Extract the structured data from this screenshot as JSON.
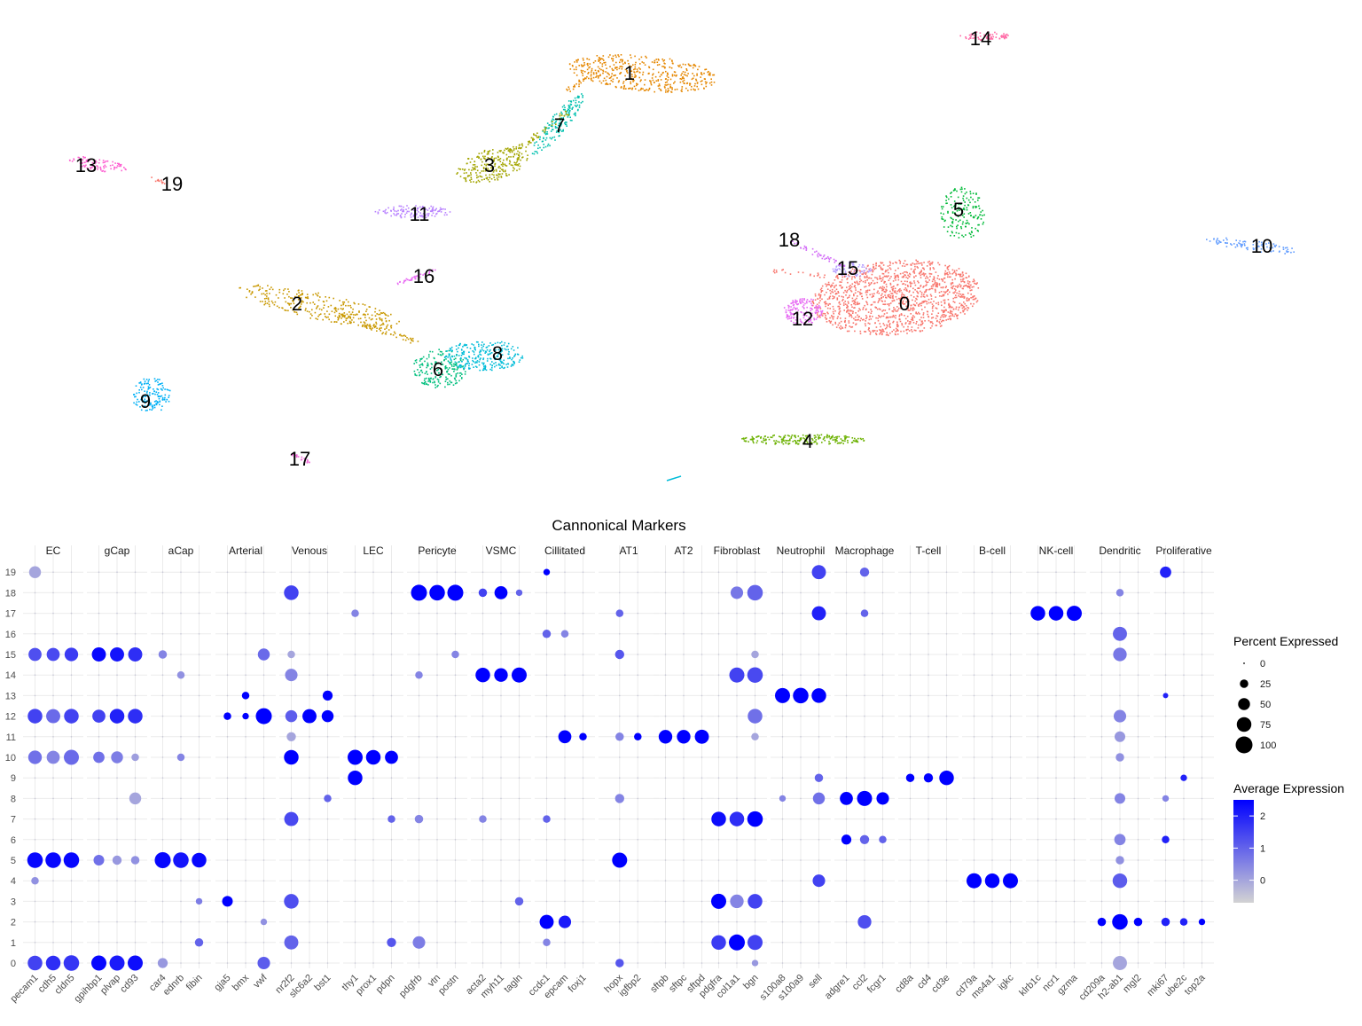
{
  "chart_data": [
    {
      "type": "scatter",
      "title": "",
      "xlabel": "",
      "ylabel": "",
      "point_size": "small",
      "clusters": [
        {
          "id": "0",
          "color": "#F8766D"
        },
        {
          "id": "1",
          "color": "#E58700"
        },
        {
          "id": "2",
          "color": "#C99800"
        },
        {
          "id": "3",
          "color": "#A3A500"
        },
        {
          "id": "4",
          "color": "#6BB100"
        },
        {
          "id": "5",
          "color": "#00BA38"
        },
        {
          "id": "6",
          "color": "#00BF7D"
        },
        {
          "id": "7",
          "color": "#00C0AF"
        },
        {
          "id": "8",
          "color": "#00BCD8"
        },
        {
          "id": "9",
          "color": "#00B0F6"
        },
        {
          "id": "10",
          "color": "#619CFF"
        },
        {
          "id": "11",
          "color": "#B983FF"
        },
        {
          "id": "12",
          "color": "#E76BF3"
        },
        {
          "id": "13",
          "color": "#FD61D1"
        },
        {
          "id": "14",
          "color": "#FF67A4"
        },
        {
          "id": "15",
          "color": "#B6A0FF"
        },
        {
          "id": "16",
          "color": "#E86BF3"
        },
        {
          "id": "17",
          "color": "#EE66D6"
        },
        {
          "id": "18",
          "color": "#D26BF7"
        },
        {
          "id": "19",
          "color": "#F8766D"
        }
      ]
    },
    {
      "type": "dotplot",
      "title": "Cannonical Markers",
      "xlabel": "",
      "ylabel": "",
      "y_categories": [
        "0",
        "1",
        "2",
        "3",
        "4",
        "5",
        "6",
        "7",
        "8",
        "9",
        "10",
        "11",
        "12",
        "13",
        "14",
        "15",
        "16",
        "17",
        "18",
        "19"
      ],
      "groups": [
        {
          "name": "EC",
          "genes": [
            "pecam1",
            "cdh5",
            "cldn5"
          ]
        },
        {
          "name": "gCap",
          "genes": [
            "gpihbp1",
            "plvap",
            "cd93"
          ]
        },
        {
          "name": "aCap",
          "genes": [
            "car4",
            "ednrb",
            "fibin"
          ]
        },
        {
          "name": "Arterial",
          "genes": [
            "gja5",
            "bmx",
            "vwf"
          ]
        },
        {
          "name": "Venous",
          "genes": [
            "nr2f2",
            "slc6a2",
            "bst1"
          ]
        },
        {
          "name": "LEC",
          "genes": [
            "thy1",
            "prox1",
            "pdpn"
          ]
        },
        {
          "name": "Pericyte",
          "genes": [
            "pdgfrb",
            "vtn",
            "postn"
          ]
        },
        {
          "name": "VSMC",
          "genes": [
            "acta2",
            "myh11",
            "tagln"
          ]
        },
        {
          "name": "Cillitated",
          "genes": [
            "ccdc1",
            "epcam",
            "foxj1"
          ]
        },
        {
          "name": "AT1",
          "genes": [
            "hopx",
            "igfbp2"
          ]
        },
        {
          "name": "AT2",
          "genes": [
            "sftpb",
            "sftpc",
            "sftpd"
          ]
        },
        {
          "name": "Fibroblast",
          "genes": [
            "pdgfra",
            "col1a1",
            "bgn"
          ]
        },
        {
          "name": "Neutrophil",
          "genes": [
            "s100a8",
            "s100a9",
            "sell"
          ]
        },
        {
          "name": "Macrophage",
          "genes": [
            "adgre1",
            "ccl2",
            "fcgr1"
          ]
        },
        {
          "name": "T-cell",
          "genes": [
            "cd8a",
            "cd4",
            "cd3e"
          ]
        },
        {
          "name": "B-cell",
          "genes": [
            "cd79a",
            "ms4a1",
            "igkc"
          ]
        },
        {
          "name": "NK-cell",
          "genes": [
            "klrb1c",
            "ncr1",
            "gzma"
          ]
        },
        {
          "name": "Dendritic",
          "genes": [
            "cd209a",
            "h2-ab1",
            "mgl2"
          ]
        },
        {
          "name": "Proliferative",
          "genes": [
            "mki67",
            "ube2c",
            "top2a"
          ]
        }
      ],
      "dots": [
        [
          "pecam1",
          "19",
          50,
          0.0
        ],
        [
          "pecam1",
          "15",
          60,
          1.3
        ],
        [
          "pecam1",
          "12",
          75,
          1.5
        ],
        [
          "pecam1",
          "10",
          65,
          0.8
        ],
        [
          "pecam1",
          "5",
          85,
          2.4
        ],
        [
          "pecam1",
          "4",
          20,
          0.3
        ],
        [
          "pecam1",
          "0",
          75,
          1.5
        ],
        [
          "cdh5",
          "15",
          60,
          1.4
        ],
        [
          "cdh5",
          "12",
          70,
          0.9
        ],
        [
          "cdh5",
          "10",
          60,
          0.5
        ],
        [
          "cdh5",
          "5",
          85,
          2.4
        ],
        [
          "cdh5",
          "0",
          75,
          1.8
        ],
        [
          "cldn5",
          "15",
          65,
          1.6
        ],
        [
          "cldn5",
          "12",
          75,
          1.5
        ],
        [
          "cldn5",
          "10",
          80,
          0.9
        ],
        [
          "cldn5",
          "5",
          85,
          2.4
        ],
        [
          "cldn5",
          "0",
          85,
          1.7
        ],
        [
          "gpihbp1",
          "15",
          70,
          2.4
        ],
        [
          "gpihbp1",
          "12",
          60,
          1.5
        ],
        [
          "gpihbp1",
          "10",
          45,
          0.8
        ],
        [
          "gpihbp1",
          "5",
          40,
          0.8
        ],
        [
          "gpihbp1",
          "0",
          80,
          2.4
        ],
        [
          "plvap",
          "15",
          70,
          2.2
        ],
        [
          "plvap",
          "12",
          75,
          2.0
        ],
        [
          "plvap",
          "10",
          50,
          0.6
        ],
        [
          "plvap",
          "5",
          30,
          0.2
        ],
        [
          "plvap",
          "0",
          80,
          2.1
        ],
        [
          "cd93",
          "15",
          70,
          1.8
        ],
        [
          "cd93",
          "12",
          75,
          1.8
        ],
        [
          "cd93",
          "10",
          20,
          0.1
        ],
        [
          "cd93",
          "8",
          50,
          0.0
        ],
        [
          "cd93",
          "5",
          25,
          0.3
        ],
        [
          "cd93",
          "0",
          80,
          2.3
        ],
        [
          "car4",
          "15",
          25,
          0.5
        ],
        [
          "car4",
          "5",
          90,
          2.4
        ],
        [
          "car4",
          "0",
          35,
          0.2
        ],
        [
          "ednrb",
          "14",
          20,
          0.3
        ],
        [
          "ednrb",
          "10",
          20,
          0.5
        ],
        [
          "ednrb",
          "5",
          85,
          2.2
        ],
        [
          "fibin",
          "5",
          75,
          2.4
        ],
        [
          "fibin",
          "3",
          15,
          0.6
        ],
        [
          "fibin",
          "1",
          25,
          1.0
        ],
        [
          "gja5",
          "12",
          20,
          2.5
        ],
        [
          "gja5",
          "3",
          40,
          2.5
        ],
        [
          "bmx",
          "13",
          20,
          2.5
        ],
        [
          "bmx",
          "12",
          15,
          2.5
        ],
        [
          "vwf",
          "15",
          50,
          0.9
        ],
        [
          "vwf",
          "12",
          90,
          2.5
        ],
        [
          "vwf",
          "2",
          15,
          0.3
        ],
        [
          "vwf",
          "0",
          55,
          1.1
        ],
        [
          "nr2f2",
          "18",
          75,
          1.5
        ],
        [
          "nr2f2",
          "15",
          20,
          0.0
        ],
        [
          "nr2f2",
          "14",
          55,
          0.5
        ],
        [
          "nr2f2",
          "12",
          50,
          1.1
        ],
        [
          "nr2f2",
          "11",
          30,
          0.0
        ],
        [
          "nr2f2",
          "10",
          75,
          2.5
        ],
        [
          "nr2f2",
          "7",
          70,
          1.4
        ],
        [
          "nr2f2",
          "3",
          75,
          1.3
        ],
        [
          "nr2f2",
          "1",
          70,
          1.0
        ],
        [
          "slc6a2",
          "12",
          70,
          2.5
        ],
        [
          "bst1",
          "13",
          35,
          2.5
        ],
        [
          "bst1",
          "12",
          50,
          2.5
        ],
        [
          "bst1",
          "8",
          20,
          1.0
        ],
        [
          "thy1",
          "17",
          20,
          0.5
        ],
        [
          "thy1",
          "10",
          80,
          2.5
        ],
        [
          "thy1",
          "9",
          75,
          2.5
        ],
        [
          "prox1",
          "10",
          75,
          2.5
        ],
        [
          "pdpn",
          "10",
          60,
          2.5
        ],
        [
          "pdpn",
          "7",
          20,
          1.0
        ],
        [
          "pdpn",
          "1",
          30,
          1.2
        ],
        [
          "pdgfrb",
          "18",
          90,
          2.5
        ],
        [
          "pdgfrb",
          "14",
          20,
          0.5
        ],
        [
          "pdgfrb",
          "7",
          25,
          0.5
        ],
        [
          "pdgfrb",
          "1",
          55,
          0.6
        ],
        [
          "vtn",
          "18",
          85,
          2.5
        ],
        [
          "postn",
          "18",
          90,
          2.5
        ],
        [
          "postn",
          "15",
          20,
          0.5
        ],
        [
          "acta2",
          "18",
          25,
          1.5
        ],
        [
          "acta2",
          "14",
          75,
          2.5
        ],
        [
          "acta2",
          "7",
          20,
          0.5
        ],
        [
          "myh11",
          "18",
          60,
          2.5
        ],
        [
          "myh11",
          "14",
          65,
          2.5
        ],
        [
          "tagln",
          "18",
          15,
          1.0
        ],
        [
          "tagln",
          "14",
          80,
          2.5
        ],
        [
          "tagln",
          "3",
          25,
          1.0
        ],
        [
          "ccdc1",
          "19",
          15,
          2.5
        ],
        [
          "ccdc1",
          "16",
          25,
          1.0
        ],
        [
          "ccdc1",
          "7",
          20,
          1.0
        ],
        [
          "ccdc1",
          "2",
          70,
          2.5
        ],
        [
          "ccdc1",
          "1",
          20,
          0.5
        ],
        [
          "epcam",
          "16",
          20,
          0.5
        ],
        [
          "epcam",
          "11",
          60,
          2.5
        ],
        [
          "epcam",
          "2",
          55,
          2.1
        ],
        [
          "foxj1",
          "11",
          20,
          2.5
        ],
        [
          "hopx",
          "17",
          20,
          1.0
        ],
        [
          "hopx",
          "15",
          30,
          1.2
        ],
        [
          "hopx",
          "11",
          25,
          0.5
        ],
        [
          "hopx",
          "8",
          30,
          0.5
        ],
        [
          "hopx",
          "5",
          80,
          2.5
        ],
        [
          "hopx",
          "0",
          25,
          1.2
        ],
        [
          "igfbp2",
          "11",
          20,
          2.5
        ],
        [
          "sftpb",
          "11",
          65,
          2.5
        ],
        [
          "sftpc",
          "11",
          65,
          2.5
        ],
        [
          "sftpd",
          "11",
          70,
          2.5
        ],
        [
          "pdgfra",
          "7",
          75,
          2.3
        ],
        [
          "pdgfra",
          "3",
          80,
          2.5
        ],
        [
          "pdgfra",
          "1",
          75,
          1.6
        ],
        [
          "col1a1",
          "18",
          55,
          0.7
        ],
        [
          "col1a1",
          "14",
          80,
          1.5
        ],
        [
          "col1a1",
          "7",
          75,
          1.8
        ],
        [
          "col1a1",
          "3",
          65,
          0.5
        ],
        [
          "col1a1",
          "1",
          90,
          2.5
        ],
        [
          "bgn",
          "18",
          85,
          1.0
        ],
        [
          "bgn",
          "15",
          20,
          0.0
        ],
        [
          "bgn",
          "14",
          85,
          1.4
        ],
        [
          "bgn",
          "12",
          75,
          0.8
        ],
        [
          "bgn",
          "11",
          20,
          0.0
        ],
        [
          "bgn",
          "7",
          85,
          2.5
        ],
        [
          "bgn",
          "3",
          75,
          1.5
        ],
        [
          "bgn",
          "1",
          80,
          1.5
        ],
        [
          "bgn",
          "0",
          15,
          0.2
        ],
        [
          "s100a8",
          "13",
          80,
          2.5
        ],
        [
          "s100a8",
          "8",
          15,
          0.5
        ],
        [
          "s100a9",
          "13",
          85,
          2.5
        ],
        [
          "sell",
          "19",
          70,
          1.5
        ],
        [
          "sell",
          "17",
          70,
          2.0
        ],
        [
          "sell",
          "13",
          75,
          2.5
        ],
        [
          "sell",
          "9",
          25,
          1.0
        ],
        [
          "sell",
          "8",
          50,
          0.8
        ],
        [
          "sell",
          "4",
          55,
          1.5
        ],
        [
          "adgre1",
          "8",
          60,
          2.5
        ],
        [
          "adgre1",
          "6",
          35,
          2.5
        ],
        [
          "ccl2",
          "19",
          30,
          1.0
        ],
        [
          "ccl2",
          "17",
          20,
          1.0
        ],
        [
          "ccl2",
          "8",
          80,
          2.5
        ],
        [
          "ccl2",
          "6",
          30,
          1.0
        ],
        [
          "ccl2",
          "2",
          65,
          1.3
        ],
        [
          "fcgr1",
          "8",
          55,
          2.5
        ],
        [
          "fcgr1",
          "6",
          20,
          1.0
        ],
        [
          "cd8a",
          "9",
          25,
          2.5
        ],
        [
          "cd4",
          "9",
          30,
          2.5
        ],
        [
          "cd3e",
          "9",
          75,
          2.5
        ],
        [
          "cd79a",
          "4",
          80,
          2.5
        ],
        [
          "ms4a1",
          "4",
          75,
          2.5
        ],
        [
          "igkc",
          "4",
          80,
          2.5
        ],
        [
          "klrb1c",
          "17",
          75,
          2.5
        ],
        [
          "ncr1",
          "17",
          75,
          2.5
        ],
        [
          "gzma",
          "17",
          80,
          2.5
        ],
        [
          "cd209a",
          "2",
          25,
          2.5
        ],
        [
          "h2-ab1",
          "16",
          70,
          1.0
        ],
        [
          "h2-ab1",
          "15",
          65,
          0.7
        ],
        [
          "h2-ab1",
          "12",
          55,
          0.5
        ],
        [
          "h2-ab1",
          "11",
          40,
          0.2
        ],
        [
          "h2-ab1",
          "10",
          25,
          0.3
        ],
        [
          "h2-ab1",
          "8",
          40,
          0.5
        ],
        [
          "h2-ab1",
          "6",
          45,
          0.5
        ],
        [
          "h2-ab1",
          "5",
          25,
          0.3
        ],
        [
          "h2-ab1",
          "4",
          75,
          1.1
        ],
        [
          "h2-ab1",
          "2",
          85,
          2.5
        ],
        [
          "h2-ab1",
          "0",
          70,
          0.0
        ],
        [
          "h2-ab1",
          "18",
          20,
          0.5
        ],
        [
          "mgl2",
          "2",
          25,
          2.5
        ],
        [
          "mki67",
          "19",
          45,
          2.0
        ],
        [
          "mki67",
          "13",
          10,
          2.0
        ],
        [
          "mki67",
          "6",
          20,
          2.0
        ],
        [
          "mki67",
          "2",
          25,
          2.0
        ],
        [
          "mki67",
          "8",
          15,
          0.5
        ],
        [
          "ube2c",
          "2",
          20,
          2.0
        ],
        [
          "ube2c",
          "9",
          15,
          2.0
        ],
        [
          "top2a",
          "2",
          15,
          2.5
        ]
      ],
      "size_legend": {
        "title": "Percent Expressed",
        "breaks": [
          0,
          25,
          50,
          75,
          100
        ]
      },
      "color_legend": {
        "title": "Average Expression",
        "breaks": [
          0,
          1,
          2
        ],
        "low": "#d3d3d3",
        "high": "#0000ff",
        "range": [
          -0.7,
          2.5
        ]
      }
    }
  ]
}
